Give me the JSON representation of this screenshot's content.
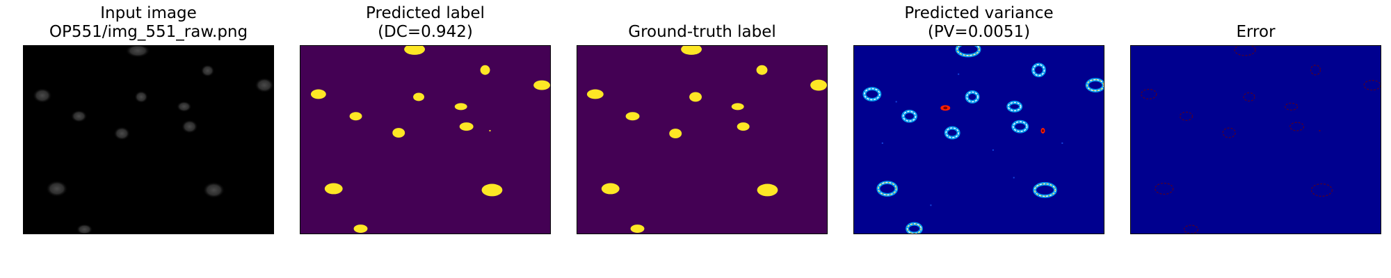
{
  "panels": [
    {
      "id": "input",
      "title_lines": [
        "Input image",
        "OP551/img_551_raw.png"
      ],
      "background": "#000000"
    },
    {
      "id": "pred",
      "title_lines": [
        "Predicted label",
        "(DC=0.942)"
      ],
      "background": "#440154"
    },
    {
      "id": "gt",
      "title_lines": [
        "Ground-truth label"
      ],
      "background": "#440154"
    },
    {
      "id": "var",
      "title_lines": [
        "Predicted variance",
        "(PV=0.0051)"
      ],
      "background": "#00008f"
    },
    {
      "id": "err",
      "title_lines": [
        "Error"
      ],
      "background": "#00008f"
    }
  ],
  "colors": {
    "label_fg": "#fde725",
    "label_bg": "#440154",
    "jet_bg": "#00008f",
    "error_ring": "#5a0020"
  }
}
